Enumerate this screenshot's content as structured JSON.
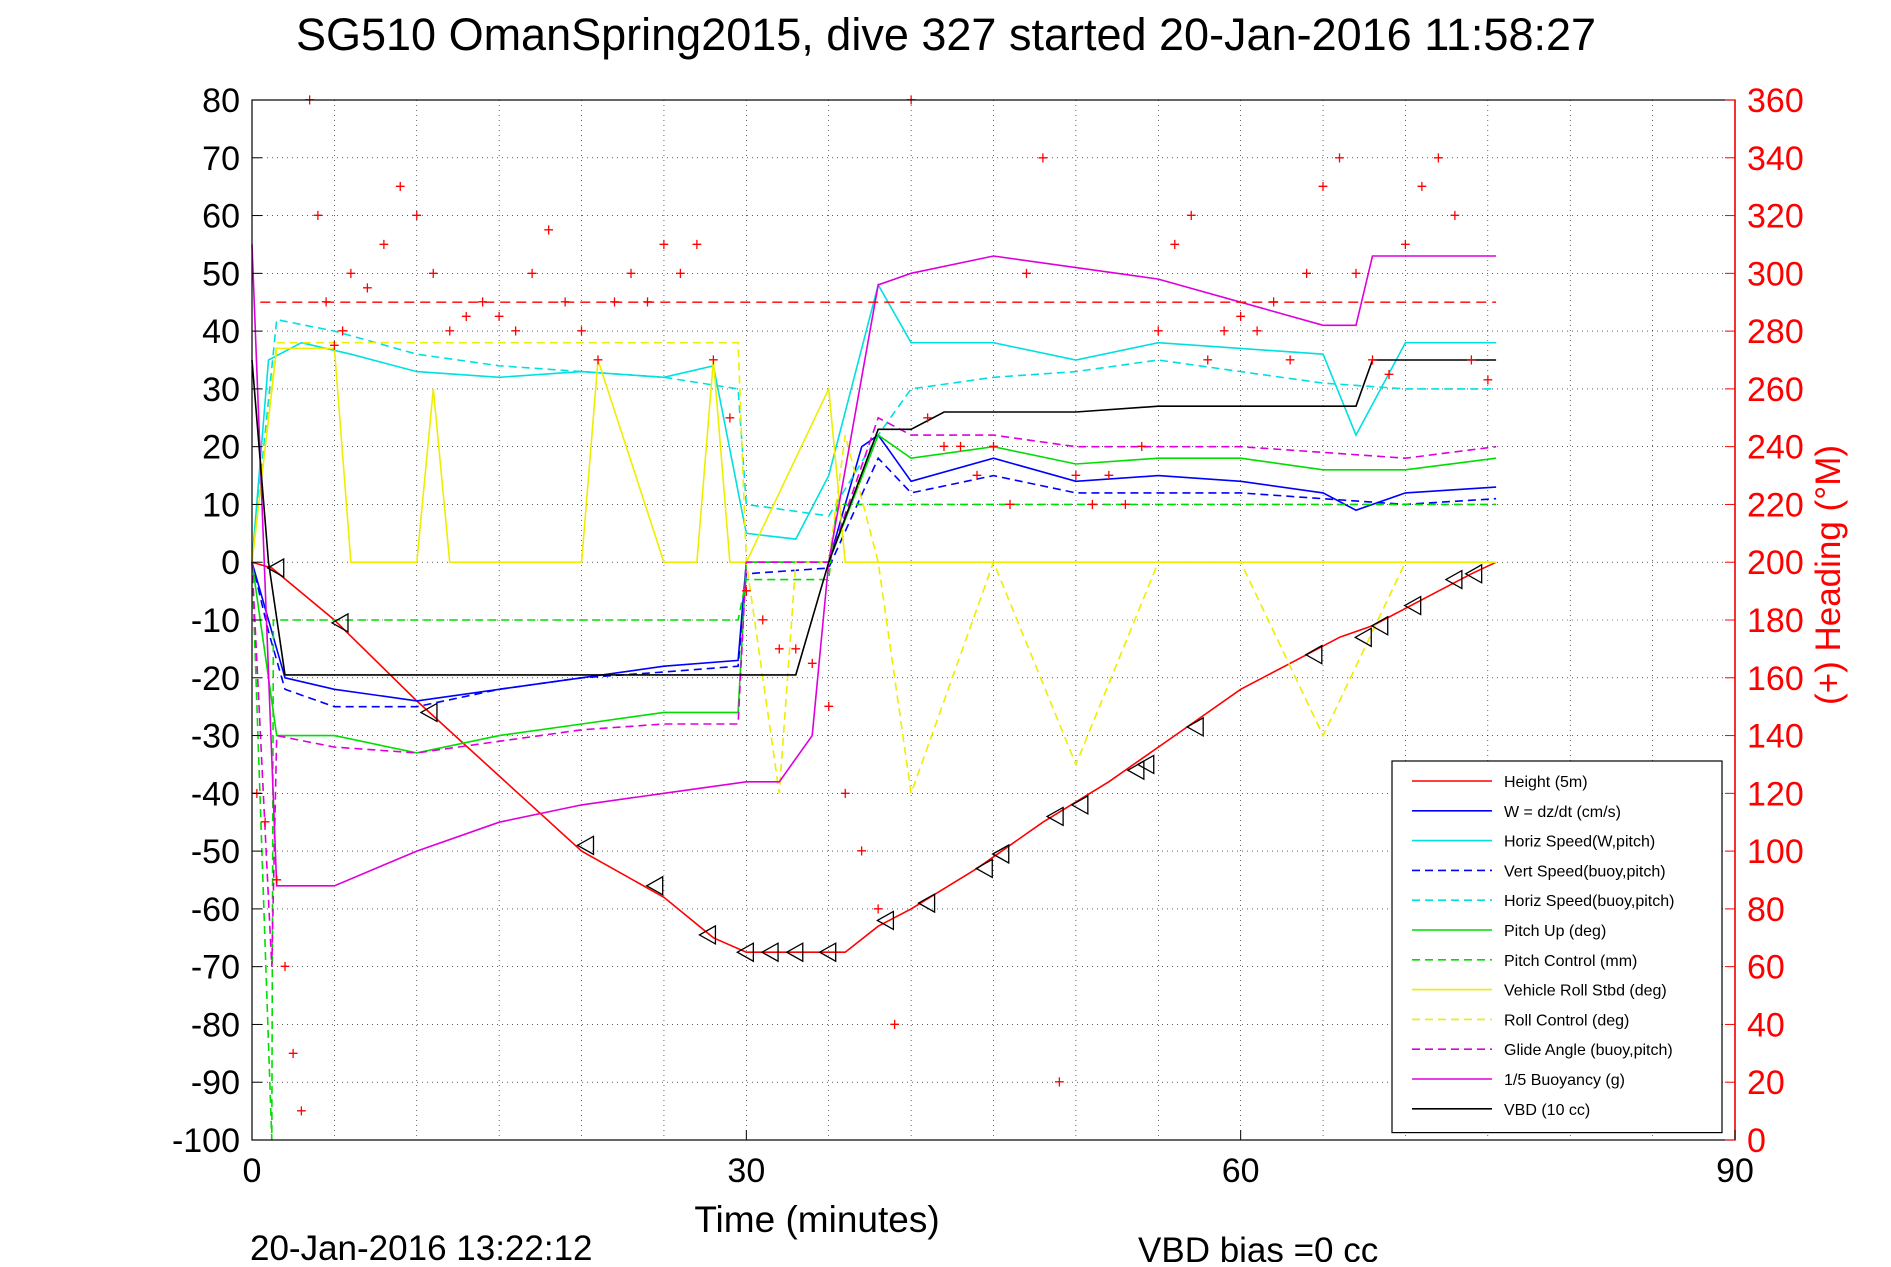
{
  "chart_data": {
    "type": "line",
    "title": "SG510 OmanSpring2015, dive 327 started 20-Jan-2016 11:58:27",
    "xlabel": "Time (minutes)",
    "ylabel_right": "(+) Heading (°M)",
    "footer_left": "20-Jan-2016 13:22:12",
    "footer_right": "VBD bias =0 cc",
    "xlim": [
      0,
      90
    ],
    "ylim": [
      -100,
      80
    ],
    "ylim_right": [
      0,
      360
    ],
    "xticks": [
      0,
      30,
      60,
      90
    ],
    "yticks": [
      80,
      70,
      60,
      50,
      40,
      30,
      20,
      10,
      0,
      -10,
      -20,
      -30,
      -40,
      -50,
      -60,
      -70,
      -80,
      -90,
      -100
    ],
    "yticks_right": [
      360,
      340,
      320,
      300,
      280,
      260,
      240,
      220,
      200,
      180,
      160,
      140,
      120,
      100,
      80,
      60,
      40,
      20,
      0
    ],
    "grid": true,
    "legend_position": "bottom-right",
    "colors": {
      "axis": "#000000",
      "heading_axis": "#ff0000",
      "grid": "#000000"
    },
    "series": [
      {
        "name": "Height (5m)",
        "color": "#ff0000",
        "style": "solid",
        "x": [
          0,
          1.2,
          5,
          10,
          15,
          20,
          25,
          28,
          30,
          32,
          34,
          36,
          38,
          40,
          44,
          48,
          52,
          56,
          60,
          64,
          66,
          68,
          70,
          72,
          74,
          75.5
        ],
        "y": [
          0,
          -1,
          -10,
          -24,
          -37,
          -50,
          -58,
          -65,
          -67.5,
          -67.5,
          -67.5,
          -67.5,
          -63,
          -60,
          -53,
          -45,
          -38,
          -30,
          -22,
          -16,
          -13,
          -11,
          -8,
          -5,
          -2,
          0
        ]
      },
      {
        "name": "W = dz/dt (cm/s)",
        "color": "#0000ff",
        "style": "solid",
        "x": [
          0,
          1,
          2,
          5,
          10,
          15,
          20,
          25,
          29.5,
          30,
          35,
          37,
          38,
          40,
          45,
          50,
          55,
          60,
          65,
          67,
          70,
          75.5
        ],
        "y": [
          0,
          -10,
          -20,
          -22,
          -24,
          -22,
          -20,
          -18,
          -17,
          0,
          0,
          20,
          22,
          14,
          18,
          14,
          15,
          14,
          12,
          9,
          12,
          13
        ]
      },
      {
        "name": "Horiz Speed(W,pitch)",
        "color": "#00e0e0",
        "style": "solid",
        "x": [
          0,
          1,
          3,
          6,
          10,
          15,
          20,
          25,
          28,
          30,
          33,
          35,
          38,
          40,
          45,
          50,
          55,
          60,
          65,
          67,
          70,
          75.5
        ],
        "y": [
          0,
          35,
          38,
          36,
          33,
          32,
          33,
          32,
          34,
          5,
          4,
          15,
          48,
          38,
          38,
          35,
          38,
          37,
          36,
          22,
          38,
          38
        ]
      },
      {
        "name": "Vert Speed(buoy,pitch)",
        "color": "#0000ff",
        "style": "dashed",
        "x": [
          0,
          1,
          2,
          5,
          10,
          15,
          20,
          25,
          29.5,
          30,
          35,
          38,
          40,
          45,
          50,
          55,
          60,
          65,
          70,
          75.5
        ],
        "y": [
          0,
          -12,
          -22,
          -25,
          -25,
          -22,
          -20,
          -19,
          -18,
          -2,
          -1,
          18,
          12,
          15,
          12,
          12,
          12,
          11,
          10,
          11
        ]
      },
      {
        "name": "Horiz Speed(buoy,pitch)",
        "color": "#00e0e0",
        "style": "dashed",
        "x": [
          0,
          1.5,
          5,
          10,
          15,
          20,
          25,
          29.5,
          30,
          35,
          38,
          40,
          45,
          50,
          55,
          60,
          65,
          70,
          75.5
        ],
        "y": [
          0,
          42,
          40,
          36,
          34,
          33,
          32,
          30,
          10,
          8,
          22,
          30,
          32,
          33,
          35,
          33,
          31,
          30,
          30
        ]
      },
      {
        "name": "Pitch Up (deg)",
        "color": "#00dd00",
        "style": "solid",
        "x": [
          0,
          1.5,
          5,
          10,
          15,
          20,
          25,
          29.5,
          30,
          35,
          38,
          40,
          45,
          50,
          55,
          60,
          65,
          70,
          75.5
        ],
        "y": [
          0,
          -30,
          -30,
          -33,
          -30,
          -28,
          -26,
          -26,
          0,
          0,
          22,
          18,
          20,
          17,
          18,
          18,
          16,
          16,
          18
        ]
      },
      {
        "name": "Pitch Control (mm)",
        "color": "#00dd00",
        "style": "dashed",
        "x": [
          0,
          1.2,
          1.3,
          1.5,
          5,
          29.5,
          30,
          35,
          35.5,
          75.5
        ],
        "y": [
          0,
          -100,
          -10,
          -10,
          -10,
          -10,
          -3,
          -3,
          10,
          10
        ]
      },
      {
        "name": "Vehicle Roll Stbd (deg)",
        "color": "#eeee00",
        "style": "solid",
        "x": [
          0,
          1.5,
          5,
          6,
          10,
          11,
          12,
          20,
          21,
          25,
          27,
          28,
          29,
          30,
          35,
          36,
          40,
          45,
          50,
          55,
          60,
          65,
          70,
          75.5
        ],
        "y": [
          0,
          37,
          37,
          0,
          0,
          30,
          0,
          0,
          35,
          0,
          0,
          35,
          0,
          0,
          30,
          0,
          0,
          0,
          0,
          0,
          0,
          0,
          0,
          0
        ]
      },
      {
        "name": "Roll Control (deg)",
        "color": "#eeee00",
        "style": "dashed",
        "x": [
          0,
          1.5,
          5,
          10,
          20,
          29.5,
          30,
          32,
          33,
          35,
          36,
          38,
          40,
          45,
          50,
          55,
          60,
          65,
          70,
          75.5
        ],
        "y": [
          0,
          38,
          38,
          38,
          38,
          38,
          0,
          -40,
          0,
          0,
          22,
          0,
          -40,
          0,
          -35,
          0,
          0,
          -30,
          0,
          0
        ]
      },
      {
        "name": "Glide Angle (buoy,pitch)",
        "color": "#dd00dd",
        "style": "dashed",
        "x": [
          0,
          1.2,
          1.5,
          5,
          10,
          15,
          20,
          25,
          29.5,
          30,
          35,
          38,
          40,
          45,
          50,
          55,
          60,
          65,
          70,
          75.5
        ],
        "y": [
          0,
          -70,
          -30,
          -32,
          -33,
          -31,
          -29,
          -28,
          -28,
          0,
          0,
          25,
          22,
          22,
          20,
          20,
          20,
          19,
          18,
          20
        ]
      },
      {
        "name": "1/5 Buoyancy (g)",
        "color": "#dd00dd",
        "style": "solid",
        "x": [
          0,
          1.5,
          5,
          10,
          15,
          20,
          25,
          30,
          32,
          34,
          35,
          38,
          40,
          45,
          50,
          55,
          60,
          65,
          67,
          68,
          75.5
        ],
        "y": [
          55,
          -56,
          -56,
          -50,
          -45,
          -42,
          -40,
          -38,
          -38,
          -30,
          0,
          48,
          50,
          53,
          51,
          49,
          45,
          41,
          41,
          53,
          53
        ]
      },
      {
        "name": "VBD (10 cc)",
        "color": "#000000",
        "style": "solid",
        "x": [
          0,
          1,
          2,
          5,
          10,
          15,
          20,
          25,
          30,
          32,
          33,
          35,
          38,
          40,
          42,
          45,
          50,
          55,
          60,
          65,
          67,
          68,
          75.5
        ],
        "y": [
          35,
          0,
          -19.5,
          -19.5,
          -19.5,
          -19.5,
          -19.5,
          -19.5,
          -19.5,
          -19.5,
          -19.5,
          0,
          23,
          23,
          26,
          26,
          26,
          27,
          27,
          27,
          27,
          35,
          35
        ]
      }
    ],
    "heading_series": {
      "name": "Heading",
      "color": "#ff0000",
      "marker": "+",
      "x": [
        0.3,
        0.8,
        1.5,
        2,
        2.5,
        3,
        3.5,
        4,
        4.5,
        5,
        5.5,
        6,
        7,
        8,
        9,
        10,
        11,
        12,
        13,
        14,
        15,
        16,
        17,
        18,
        19,
        20,
        21,
        22,
        23,
        24,
        25,
        26,
        27,
        28,
        29,
        30,
        31,
        32,
        33,
        34,
        35,
        36,
        37,
        38,
        39,
        40,
        41,
        42,
        43,
        44,
        45,
        46,
        47,
        48,
        49,
        50,
        51,
        52,
        53,
        54,
        55,
        56,
        57,
        58,
        59,
        60,
        61,
        62,
        63,
        64,
        65,
        66,
        67,
        68,
        69,
        70,
        71,
        72,
        73,
        74,
        75
      ],
      "y": [
        120,
        110,
        90,
        60,
        30,
        10,
        360,
        320,
        290,
        275,
        280,
        300,
        295,
        310,
        330,
        320,
        300,
        280,
        285,
        290,
        285,
        280,
        300,
        315,
        290,
        280,
        270,
        290,
        300,
        290,
        310,
        300,
        310,
        270,
        250,
        190,
        180,
        170,
        170,
        165,
        150,
        120,
        100,
        80,
        40,
        360,
        250,
        240,
        240,
        230,
        240,
        220,
        300,
        340,
        20,
        230,
        220,
        230,
        220,
        240,
        280,
        310,
        320,
        270,
        280,
        285,
        280,
        290,
        270,
        300,
        330,
        340,
        300,
        270,
        265,
        310,
        330,
        340,
        320,
        270,
        263
      ]
    },
    "heading_reference": {
      "value": 290,
      "color": "#ff0000",
      "style": "dashed"
    },
    "markers": {
      "name": "direction markers",
      "color": "#000000",
      "x": [
        1.5,
        5.4,
        10.8,
        20.3,
        24.5,
        27.7,
        30,
        31.5,
        33,
        35,
        38.5,
        41,
        44.5,
        45.5,
        48.8,
        50.3,
        53.7,
        54.3,
        57.3,
        64.5,
        67.5,
        68.5,
        70.5,
        73,
        74.2
      ],
      "y": [
        -1,
        -10.5,
        -26,
        -49,
        -56,
        -64.5,
        -67.5,
        -67.5,
        -67.5,
        -67.5,
        -62,
        -59,
        -53,
        -50.5,
        -44,
        -42,
        -36,
        -35,
        -28.5,
        -16,
        -13,
        -11,
        -7.5,
        -3,
        -2
      ]
    }
  }
}
